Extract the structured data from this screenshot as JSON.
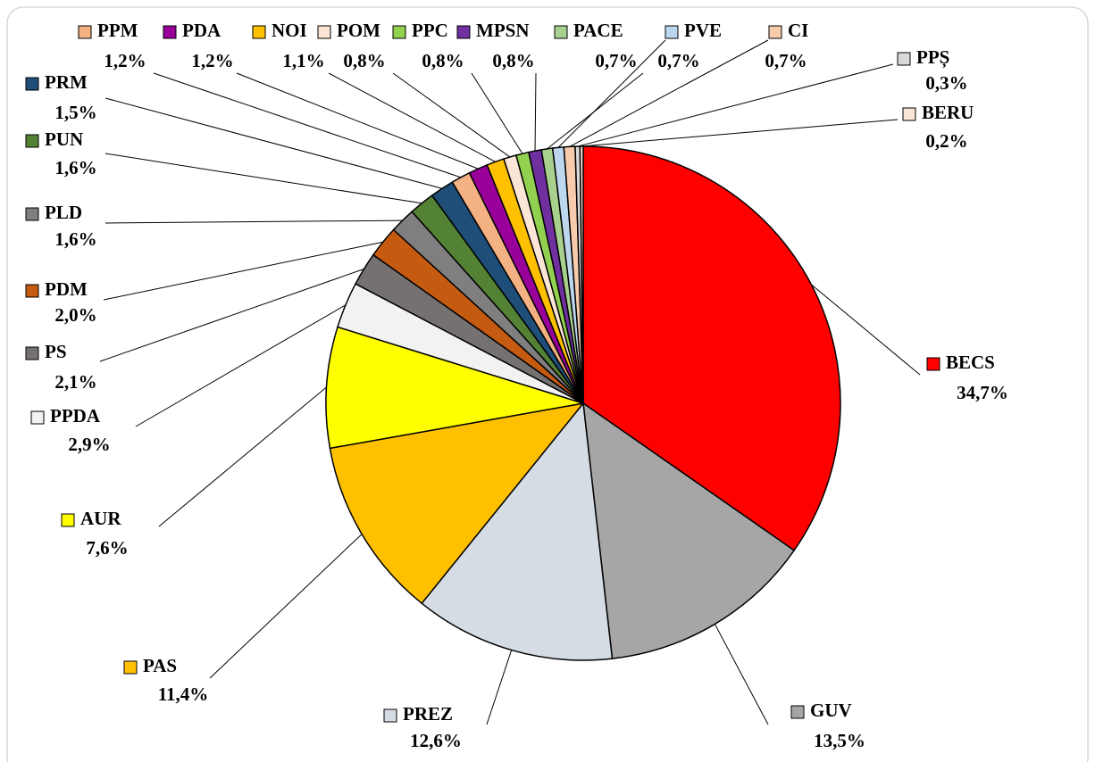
{
  "chart_data": {
    "type": "pie",
    "categories": [
      "BECS",
      "GUV",
      "PREZ",
      "PAS",
      "AUR",
      "PPDA",
      "PS",
      "PDM",
      "PLD",
      "PUN",
      "PRM",
      "PPM",
      "PDA",
      "NOI",
      "POM",
      "PPC",
      "MPSN",
      "PACE",
      "PVE",
      "CI",
      "PPȘ",
      "BERU"
    ],
    "values": [
      34.7,
      13.5,
      12.6,
      11.4,
      7.6,
      2.9,
      2.1,
      2.0,
      1.6,
      1.6,
      1.5,
      1.2,
      1.2,
      1.1,
      0.8,
      0.8,
      0.8,
      0.7,
      0.7,
      0.7,
      0.3,
      0.2
    ],
    "value_labels": [
      "34,7%",
      "13,5%",
      "12,6%",
      "11,4%",
      "7,6%",
      "2,9%",
      "2,1%",
      "2,0%",
      "1,6%",
      "1,6%",
      "1,5%",
      "1,2%",
      "1,2%",
      "1,1%",
      "0,8%",
      "0,8%",
      "0,8%",
      "0,7%",
      "0,7%",
      "0,7%",
      "0,3%",
      "0,2%"
    ],
    "colors": [
      "#ff0000",
      "#a6a6a6",
      "#d6dce4",
      "#ffc000",
      "#ffff00",
      "#f2f2f2",
      "#767171",
      "#c55a11",
      "#7f7f7f",
      "#548235",
      "#1f4e79",
      "#f4b183",
      "#990099",
      "#ffc000",
      "#fbe5d6",
      "#92d050",
      "#7030a0",
      "#a9d18e",
      "#bdd7ee",
      "#f8cbad",
      "#d9d9d9",
      "#fbe5d6"
    ]
  }
}
